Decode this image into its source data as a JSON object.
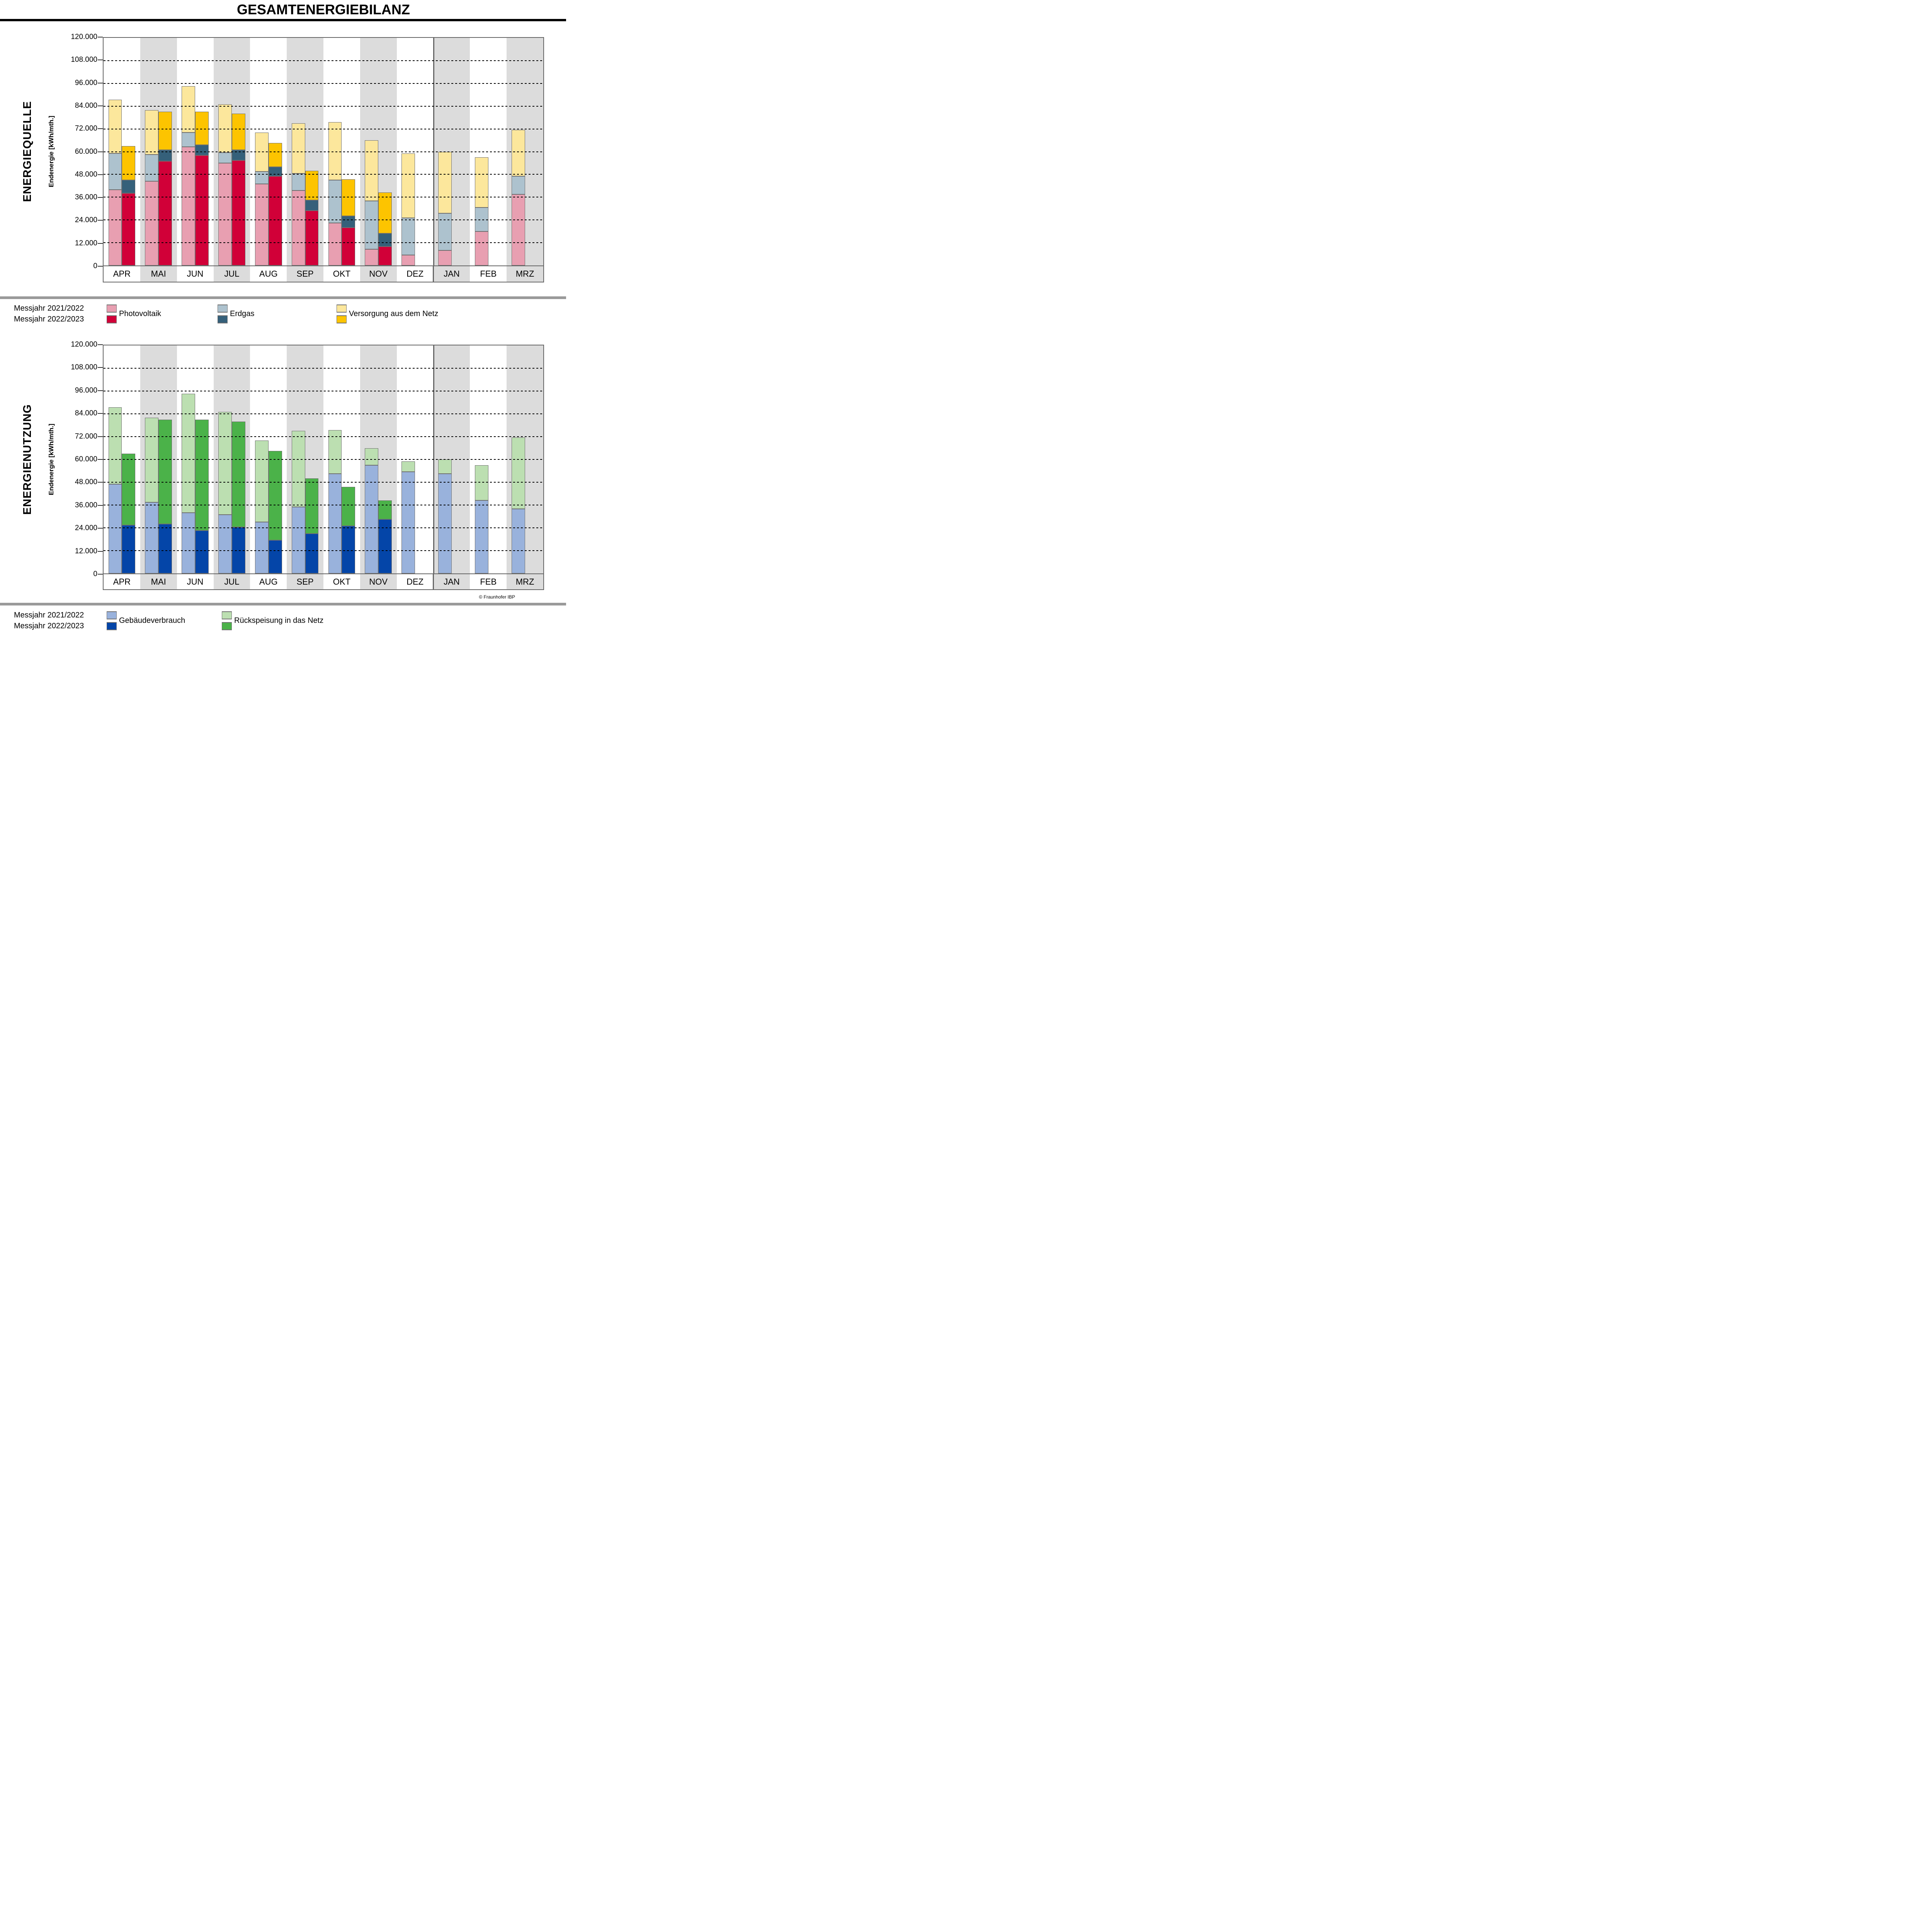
{
  "title": "GESAMTENERGIEBILANZ",
  "copyright": "© Fraunhofer IBP",
  "measurement_years": [
    "Messjahr 2021/2022",
    "Messjahr 2022/2023"
  ],
  "months": [
    "APR",
    "MAI",
    "JUN",
    "JUL",
    "AUG",
    "SEP",
    "OKT",
    "NOV",
    "DEZ",
    "JAN",
    "FEB",
    "MRZ"
  ],
  "y_axis": {
    "label": "Endenergie [kWh/mth.]",
    "tick_labels": [
      "0",
      "12.000",
      "24.000",
      "36.000",
      "48.000",
      "60.000",
      "72.000",
      "84.000",
      "96.000",
      "108.000",
      "120.000"
    ]
  },
  "colors": {
    "band": "#DCDCDC",
    "bar_border": "#6F6F6F",
    "plot_border": "#666666",
    "separator": "#9A9A9A",
    "pv_2122": "#E89FB1",
    "pv_2223": "#D10038",
    "erdgas_2122": "#ADC2CE",
    "erdgas_2223": "#35607A",
    "netz_2122": "#FCE79C",
    "netz_2223": "#FDC400",
    "gv_2122": "#99B2DC",
    "gv_2223": "#0445A8",
    "rs_2122": "#BCDFB1",
    "rs_2223": "#4BB249"
  },
  "chart_data": [
    {
      "type": "bar",
      "stacked": true,
      "section_label": "ENERGIEQUELLE",
      "ylabel": "Endenergie [kWh/mth.]",
      "ylim": [
        0,
        120000
      ],
      "ytick_step": 12000,
      "grid": "dotted horizontal",
      "legend_position": "below",
      "categories": [
        "APR",
        "MAI",
        "JUN",
        "JUL",
        "AUG",
        "SEP",
        "OKT",
        "NOV",
        "DEZ",
        "JAN",
        "FEB",
        "MRZ"
      ],
      "series": [
        {
          "name": "Photovoltaik",
          "messjahr": "2021/2022",
          "color_key": "pv_2122",
          "values": [
            40000,
            44500,
            62500,
            54000,
            43000,
            39500,
            22500,
            8500,
            5500,
            8000,
            18000,
            37500
          ]
        },
        {
          "name": "Erdgas",
          "messjahr": "2021/2022",
          "color_key": "erdgas_2122",
          "values": [
            19000,
            14000,
            7500,
            5500,
            6500,
            9000,
            22500,
            25500,
            19500,
            19500,
            12500,
            9500
          ]
        },
        {
          "name": "Versorgung aus dem Netz",
          "messjahr": "2021/2022",
          "color_key": "netz_2122",
          "values": [
            28500,
            23500,
            24500,
            25500,
            20500,
            26500,
            30500,
            32000,
            34000,
            32500,
            26500,
            24500
          ]
        },
        {
          "name": "Photovoltaik",
          "messjahr": "2022/2023",
          "color_key": "pv_2223",
          "values": [
            38000,
            55000,
            58000,
            55500,
            47000,
            29000,
            20000,
            10000,
            null,
            null,
            null,
            null
          ]
        },
        {
          "name": "Erdgas",
          "messjahr": "2022/2023",
          "color_key": "erdgas_2223",
          "values": [
            7000,
            6000,
            5500,
            5500,
            5000,
            5500,
            6000,
            7000,
            null,
            null,
            null,
            null
          ]
        },
        {
          "name": "Versorgung aus dem Netz",
          "messjahr": "2022/2023",
          "color_key": "netz_2223",
          "values": [
            18000,
            20000,
            17500,
            19000,
            12500,
            15500,
            19500,
            21500,
            null,
            null,
            null,
            null
          ]
        }
      ],
      "legend_items": [
        {
          "label": "Photovoltaik",
          "swatch_keys": [
            "pv_2122",
            "pv_2223"
          ]
        },
        {
          "label": "Erdgas",
          "swatch_keys": [
            "erdgas_2122",
            "erdgas_2223"
          ]
        },
        {
          "label": "Versorgung aus dem Netz",
          "swatch_keys": [
            "netz_2122",
            "netz_2223"
          ]
        }
      ]
    },
    {
      "type": "bar",
      "stacked": true,
      "section_label": "ENERGIENUTZUNG",
      "ylabel": "Endenergie [kWh/mth.]",
      "ylim": [
        0,
        120000
      ],
      "ytick_step": 12000,
      "grid": "dotted horizontal",
      "legend_position": "below",
      "categories": [
        "APR",
        "MAI",
        "JUN",
        "JUL",
        "AUG",
        "SEP",
        "OKT",
        "NOV",
        "DEZ",
        "JAN",
        "FEB",
        "MRZ"
      ],
      "series": [
        {
          "name": "Gebäudeverbrauch",
          "messjahr": "2021/2022",
          "color_key": "gv_2122",
          "values": [
            47000,
            37500,
            32000,
            31000,
            27000,
            35000,
            52500,
            57000,
            53500,
            52500,
            38500,
            34000
          ]
        },
        {
          "name": "Rückspeisung in das Netz",
          "messjahr": "2021/2022",
          "color_key": "rs_2122",
          "values": [
            40500,
            44500,
            62500,
            54000,
            43000,
            40000,
            23000,
            9000,
            5500,
            7500,
            18500,
            37500
          ]
        },
        {
          "name": "Gebäudeverbrauch",
          "messjahr": "2022/2023",
          "color_key": "gv_2223",
          "values": [
            25500,
            26000,
            22500,
            24500,
            17500,
            21000,
            25000,
            28500,
            null,
            null,
            null,
            null
          ]
        },
        {
          "name": "Rückspeisung in das Netz",
          "messjahr": "2022/2023",
          "color_key": "rs_2223",
          "values": [
            37500,
            55000,
            58500,
            55500,
            47000,
            29000,
            20500,
            10000,
            null,
            null,
            null,
            null
          ]
        }
      ],
      "legend_items": [
        {
          "label": "Gebäudeverbrauch",
          "swatch_keys": [
            "gv_2122",
            "gv_2223"
          ]
        },
        {
          "label": "Rückspeisung in das Netz",
          "swatch_keys": [
            "rs_2122",
            "rs_2223"
          ]
        }
      ]
    }
  ]
}
